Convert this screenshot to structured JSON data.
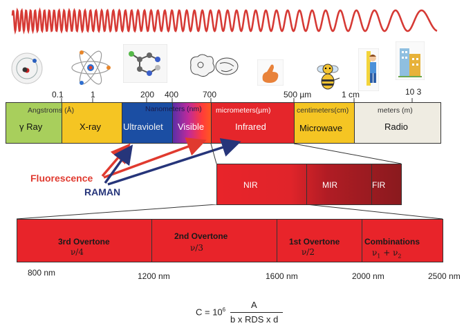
{
  "scale_ticks": {
    "t0_1": "0.1",
    "t1": "1",
    "t200": "200",
    "t400": "400",
    "t700": "700",
    "t500um": "500 µm",
    "t1cm": "1 cm",
    "t10_3": "10 3"
  },
  "bands": {
    "gamma": {
      "unit": "Angstroms (Å)",
      "name": "γ Ray",
      "color": "#a8cf5c"
    },
    "xray": {
      "name": "X-ray",
      "color": "#f5c523"
    },
    "uv": {
      "unit": "Nanometers (nm)",
      "name": "Ultraviolet",
      "color": "#1b4ea3"
    },
    "visible": {
      "name": "Visible"
    },
    "ir": {
      "unit": "micrometers(µm)",
      "name": "Infrared",
      "color": "#e5262b"
    },
    "microwave": {
      "unit": "centimeters(cm)",
      "name": "Microwave",
      "color": "#f5c523"
    },
    "radio": {
      "unit": "meters (m)",
      "name": "Radio",
      "color": "#efece2"
    }
  },
  "arrows": {
    "fluorescence": "Fluorescence",
    "raman": "RAMAN",
    "fluorescence_color": "#e03a2f",
    "raman_color": "#26357a"
  },
  "ir_regions": [
    "NIR",
    "MIR",
    "FIR"
  ],
  "overtones": [
    {
      "name": "3rd Overtone",
      "sub": "ν/4"
    },
    {
      "name": "2nd Overtone",
      "sub": "ν/3"
    },
    {
      "name": "1st Overtone",
      "sub": "ν/2"
    },
    {
      "name": "Combinations",
      "sub": "ν1 + ν2"
    }
  ],
  "nm_labels": [
    "800 nm",
    "1200 nm",
    "1600 nm",
    "2000 nm",
    "2500 nm"
  ],
  "formula": {
    "lhs": "C = 10",
    "exp": "6",
    "numerator": "A",
    "denominator": "b x RDS x d"
  },
  "icons": [
    "atom-orbit-icon",
    "atom-model-icon",
    "molecule-icon",
    "cells-icon",
    "hand-icon",
    "bee-icon",
    "person-icon",
    "building-icon"
  ]
}
